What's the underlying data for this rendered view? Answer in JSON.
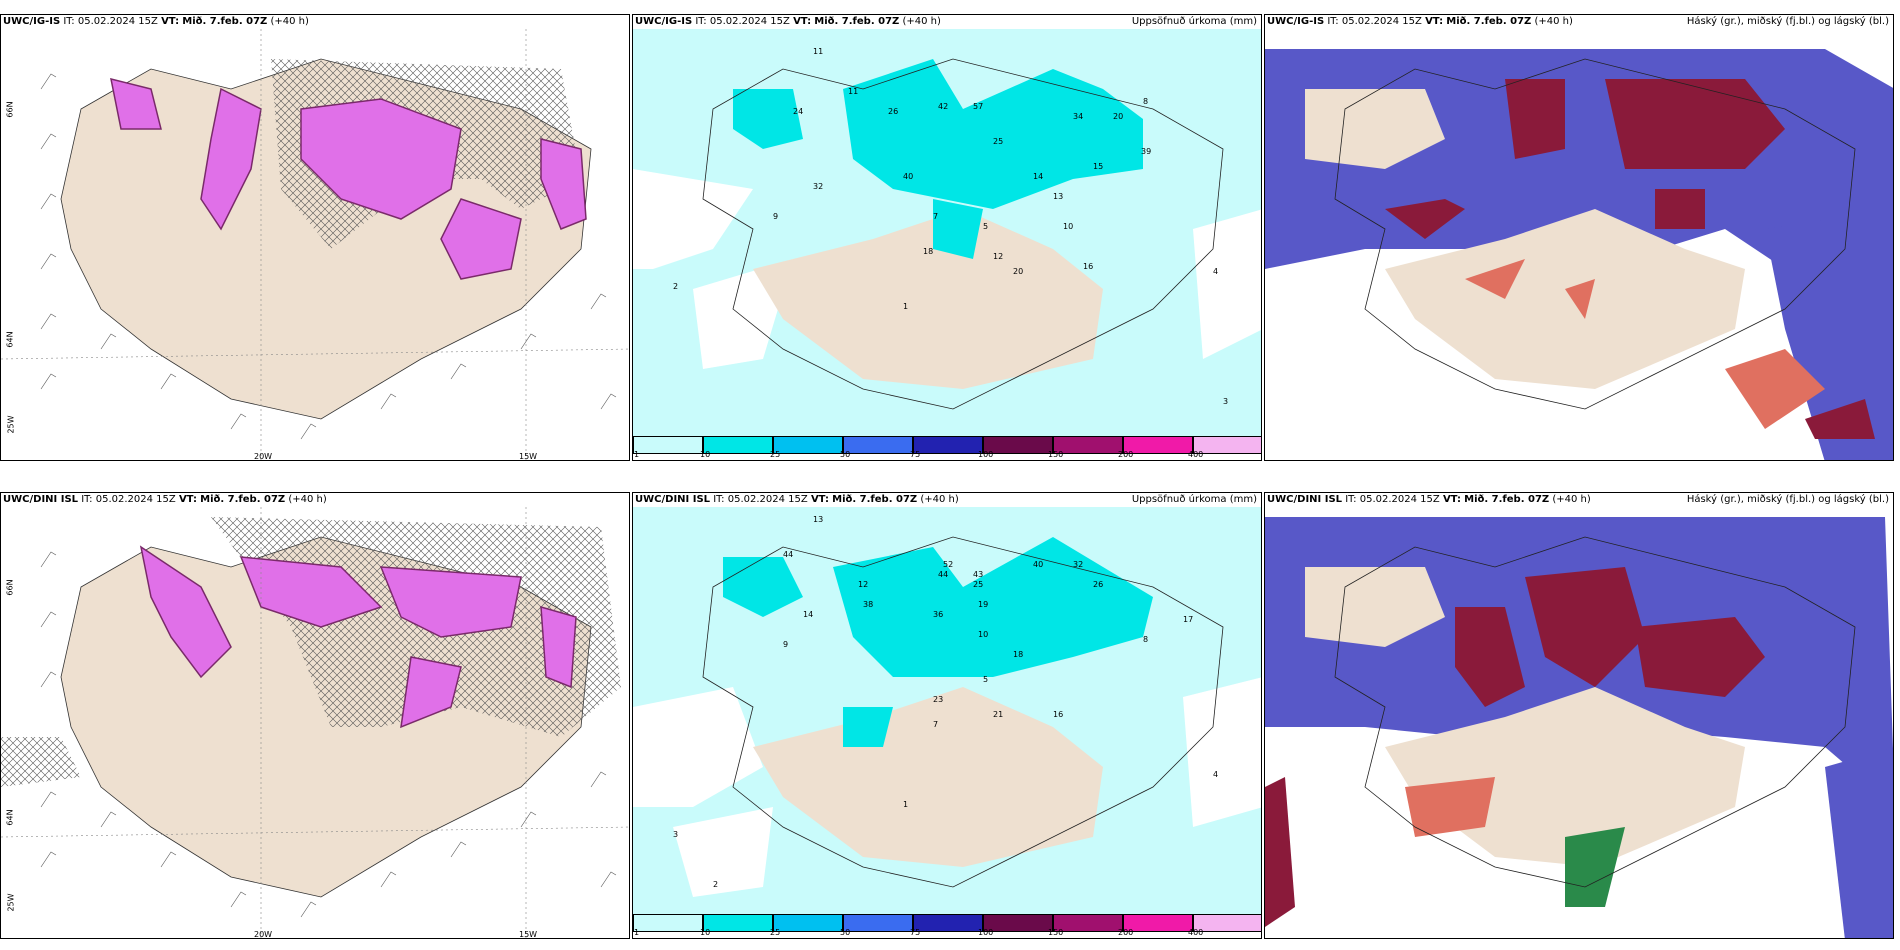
{
  "panels": [
    {
      "model": "UWC/IG-IS",
      "it_prefix": "IT:",
      "it": "05.02.2024 15Z",
      "vt_prefix": "VT:",
      "vt": "Mið. 7.feb. 07Z",
      "lead": "(+40 h)",
      "right_label": ""
    },
    {
      "model": "UWC/IG-IS",
      "it_prefix": "IT:",
      "it": "05.02.2024 15Z",
      "vt_prefix": "VT:",
      "vt": "Mið. 7.feb. 07Z",
      "lead": "(+40 h)",
      "right_label": "Uppsöfnuð úrkoma (mm)"
    },
    {
      "model": "UWC/IG-IS",
      "it_prefix": "IT:",
      "it": "05.02.2024 15Z",
      "vt_prefix": "VT:",
      "vt": "Mið. 7.feb. 07Z",
      "lead": "(+40 h)",
      "right_label": "Háský (gr.), miðský (fj.bl.) og lágský (bl.)"
    },
    {
      "model": "UWC/DINI ISL",
      "it_prefix": "IT:",
      "it": "05.02.2024 15Z",
      "vt_prefix": "VT:",
      "vt": "Mið. 7.feb. 07Z",
      "lead": "(+40 h)",
      "right_label": ""
    },
    {
      "model": "UWC/DINI ISL",
      "it_prefix": "IT:",
      "it": "05.02.2024 15Z",
      "vt_prefix": "VT:",
      "vt": "Mið. 7.feb. 07Z",
      "lead": "(+40 h)",
      "right_label": "Uppsöfnuð úrkoma (mm)"
    },
    {
      "model": "UWC/DINI ISL",
      "it_prefix": "IT:",
      "it": "05.02.2024 15Z",
      "vt_prefix": "VT:",
      "vt": "Mið. 7.feb. 07Z",
      "lead": "(+40 h)",
      "right_label": "Háský (gr.), miðský (fj.bl.) og lágský (bl.)"
    }
  ],
  "axis_labels": {
    "lon_20": "20W",
    "lon_15": "15W",
    "lat_66": "66N",
    "lat_64": "64N",
    "lon_25": "25W"
  },
  "colorbar": {
    "labels": [
      "1",
      "10",
      "25",
      "50",
      "75",
      "100",
      "150",
      "200",
      "400"
    ],
    "colors": [
      "#c9fbfb",
      "#00e6e6",
      "#00c0f0",
      "#3a6cf0",
      "#2222b0",
      "#6a0a4a",
      "#a0106e",
      "#f01aa8",
      "#f4b4f0"
    ]
  },
  "precip_values_top": [
    "11",
    "11",
    "26",
    "24",
    "42",
    "57",
    "34",
    "20",
    "39",
    "15",
    "32",
    "40",
    "25",
    "14",
    "13",
    "18",
    "20",
    "12",
    "16",
    "10",
    "9",
    "8",
    "7",
    "5",
    "4",
    "3",
    "2",
    "1"
  ],
  "precip_values_bottom": [
    "13",
    "12",
    "44",
    "14",
    "44",
    "43",
    "52",
    "40",
    "32",
    "26",
    "17",
    "38",
    "36",
    "25",
    "19",
    "23",
    "21",
    "18",
    "16",
    "10",
    "9",
    "8",
    "7",
    "5",
    "4",
    "3",
    "2",
    "1"
  ],
  "colors": {
    "land": "#eee0d0",
    "cyan_light": "#c9fbfb",
    "cyan": "#00e6e6",
    "magenta": "#e070e8",
    "dark_magenta": "#7a2a6a",
    "cloud_blue": "#5858c8",
    "cloud_red": "#8a1a3a",
    "cloud_orange": "#e07060"
  }
}
